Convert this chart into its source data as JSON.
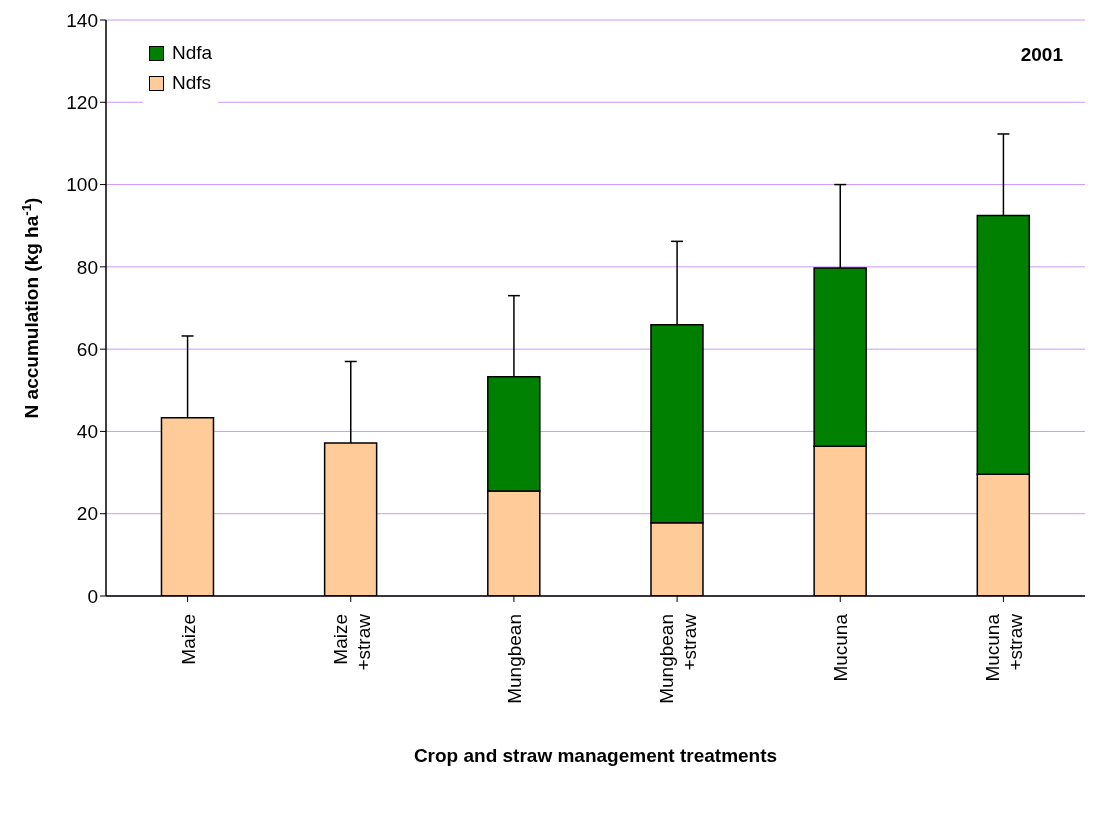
{
  "chart_data": {
    "type": "bar",
    "stacked": true,
    "xlabel": "Crop and straw management treatments",
    "ylabel": "N accumulation (kg ha$^{-1}$)",
    "categories": [
      "Maize",
      "Maize\n+straw",
      "Mungbean",
      "Mungbean\n+straw",
      "Mucuna",
      "Mucuna\n+straw"
    ],
    "series": [
      {
        "name": "Ndfs",
        "color": "#ffcc99",
        "values": [
          43.3,
          37.2,
          25.5,
          17.8,
          36.4,
          29.6
        ]
      },
      {
        "name": "Ndfa",
        "color": "#008000",
        "values": [
          0,
          0,
          27.8,
          48.1,
          43.3,
          62.9
        ],
        "errors": [
          [
            43.3,
            63.2
          ],
          [
            37.2,
            57.0
          ],
          [
            53.3,
            73.0
          ],
          [
            65.9,
            86.2
          ],
          [
            79.7,
            100
          ],
          [
            92.5,
            112.3
          ]
        ]
      }
    ],
    "ylim": [
      0,
      140
    ],
    "yticks": [
      0,
      20,
      40,
      60,
      80,
      100,
      120,
      140
    ],
    "grid": "y",
    "legend": "top left",
    "annotations": [
      "2001"
    ]
  }
}
